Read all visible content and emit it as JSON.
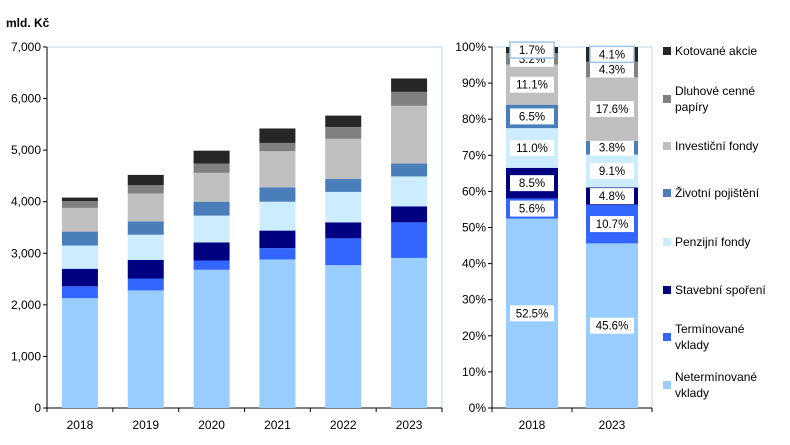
{
  "chart_data": [
    {
      "type": "bar",
      "stacked": true,
      "unit_label": "mld. Kč",
      "categories": [
        "2018",
        "2019",
        "2020",
        "2021",
        "2022",
        "2023"
      ],
      "ylim": [
        0,
        7000
      ],
      "yticks": [
        "0",
        "1,000",
        "2,000",
        "3,000",
        "4,000",
        "5,000",
        "6,000",
        "7,000"
      ],
      "series": [
        {
          "name": "Netermínované vklady",
          "color": "#99ccff",
          "values": [
            2130,
            2280,
            2680,
            2880,
            2770,
            2910
          ]
        },
        {
          "name": "Termínované vklady",
          "color": "#3366ff",
          "values": [
            230,
            230,
            180,
            220,
            520,
            690
          ]
        },
        {
          "name": "Stavební spoření",
          "color": "#000080",
          "values": [
            340,
            360,
            350,
            340,
            310,
            310
          ]
        },
        {
          "name": "Penzijní fondy",
          "color": "#ccecff",
          "values": [
            450,
            490,
            520,
            560,
            590,
            580
          ]
        },
        {
          "name": "Životní pojištění",
          "color": "#4a7ebb",
          "values": [
            270,
            260,
            270,
            280,
            250,
            250
          ]
        },
        {
          "name": "Investiční fondy",
          "color": "#bfbfbf",
          "values": [
            460,
            540,
            560,
            700,
            780,
            1120
          ]
        },
        {
          "name": "Dluhové cenné papíry",
          "color": "#808080",
          "values": [
            130,
            160,
            180,
            160,
            230,
            270
          ]
        },
        {
          "name": "Kotované akcie",
          "color": "#262626",
          "values": [
            70,
            200,
            250,
            280,
            220,
            260
          ]
        }
      ]
    },
    {
      "type": "bar",
      "stacked": true,
      "percent": true,
      "categories": [
        "2018",
        "2023"
      ],
      "ylim": [
        0,
        100
      ],
      "yticks": [
        "0%",
        "10%",
        "20%",
        "30%",
        "40%",
        "50%",
        "60%",
        "70%",
        "80%",
        "90%",
        "100%"
      ],
      "series": [
        {
          "name": "Netermínované vklady",
          "values": [
            52.5,
            45.6
          ],
          "labels": [
            "52.5%",
            "45.6%"
          ]
        },
        {
          "name": "Termínované vklady",
          "values": [
            5.6,
            10.7
          ],
          "labels": [
            "5.6%",
            "10.7%"
          ]
        },
        {
          "name": "Stavební spoření",
          "values": [
            8.5,
            4.8
          ],
          "labels": [
            "8.5%",
            "4.8%"
          ]
        },
        {
          "name": "Penzijní fondy",
          "values": [
            11.0,
            9.1
          ],
          "labels": [
            "11.0%",
            "9.1%"
          ]
        },
        {
          "name": "Životní pojištění",
          "values": [
            6.5,
            3.8
          ],
          "labels": [
            "6.5%",
            "3.8%"
          ]
        },
        {
          "name": "Investiční fondy",
          "values": [
            11.1,
            17.6
          ],
          "labels": [
            "11.1%",
            "17.6%"
          ]
        },
        {
          "name": "Dluhové cenné papíry",
          "values": [
            3.2,
            4.3
          ],
          "labels": [
            "3.2%",
            "4.3%"
          ]
        },
        {
          "name": "Kotované akcie",
          "values": [
            1.7,
            4.1
          ],
          "labels": [
            "1.7%",
            "4.1%"
          ]
        }
      ]
    }
  ],
  "legend": {
    "placement": "right",
    "items": [
      {
        "lines": [
          "Kotované akcie"
        ],
        "color": "#262626"
      },
      {
        "lines": [
          "Dluhové cenné",
          "papíry"
        ],
        "color": "#808080"
      },
      {
        "lines": [
          "Investiční fondy"
        ],
        "color": "#bfbfbf"
      },
      {
        "lines": [
          "Životní pojištění"
        ],
        "color": "#4a7ebb"
      },
      {
        "lines": [
          "Penzijní fondy"
        ],
        "color": "#ccecff"
      },
      {
        "lines": [
          "Stavební spoření"
        ],
        "color": "#000080"
      },
      {
        "lines": [
          "Termínované",
          "vklady"
        ],
        "color": "#3366ff"
      },
      {
        "lines": [
          "Netermínované",
          "vklady"
        ],
        "color": "#99ccff"
      }
    ]
  }
}
